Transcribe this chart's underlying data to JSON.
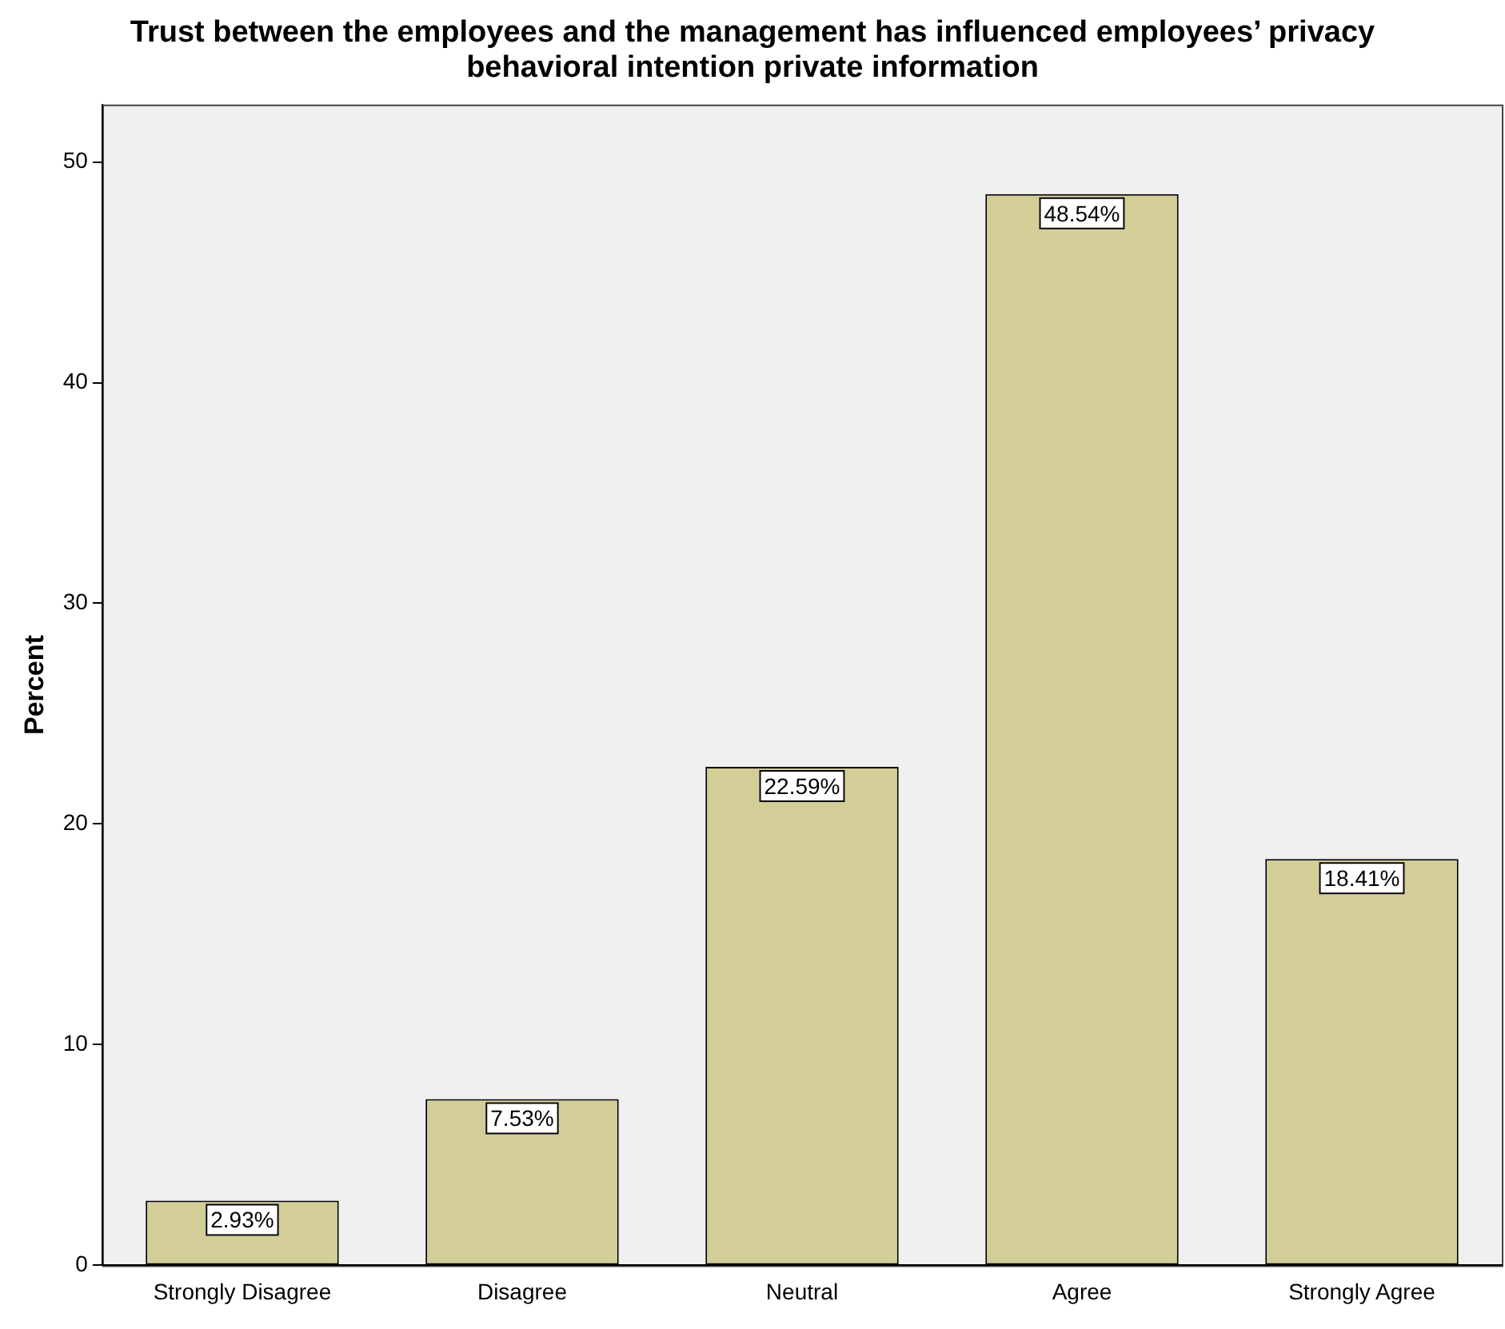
{
  "chart_data": {
    "type": "bar",
    "title": "Trust between the employees and the management has influenced employees’ privacy behavioral intention private information",
    "ylabel": "Percent",
    "categories": [
      "Strongly Disagree",
      "Disagree",
      "Neutral",
      "Agree",
      "Strongly Agree"
    ],
    "values": [
      2.93,
      7.53,
      22.59,
      48.54,
      18.41
    ],
    "value_labels": [
      "2.93%",
      "7.53%",
      "22.59%",
      "48.54%",
      "18.41%"
    ],
    "color": "#d3ce97",
    "ylim": [
      0,
      52.6
    ],
    "yticks": [
      0,
      10,
      20,
      30,
      40,
      50
    ],
    "grid": false,
    "legend": false
  }
}
